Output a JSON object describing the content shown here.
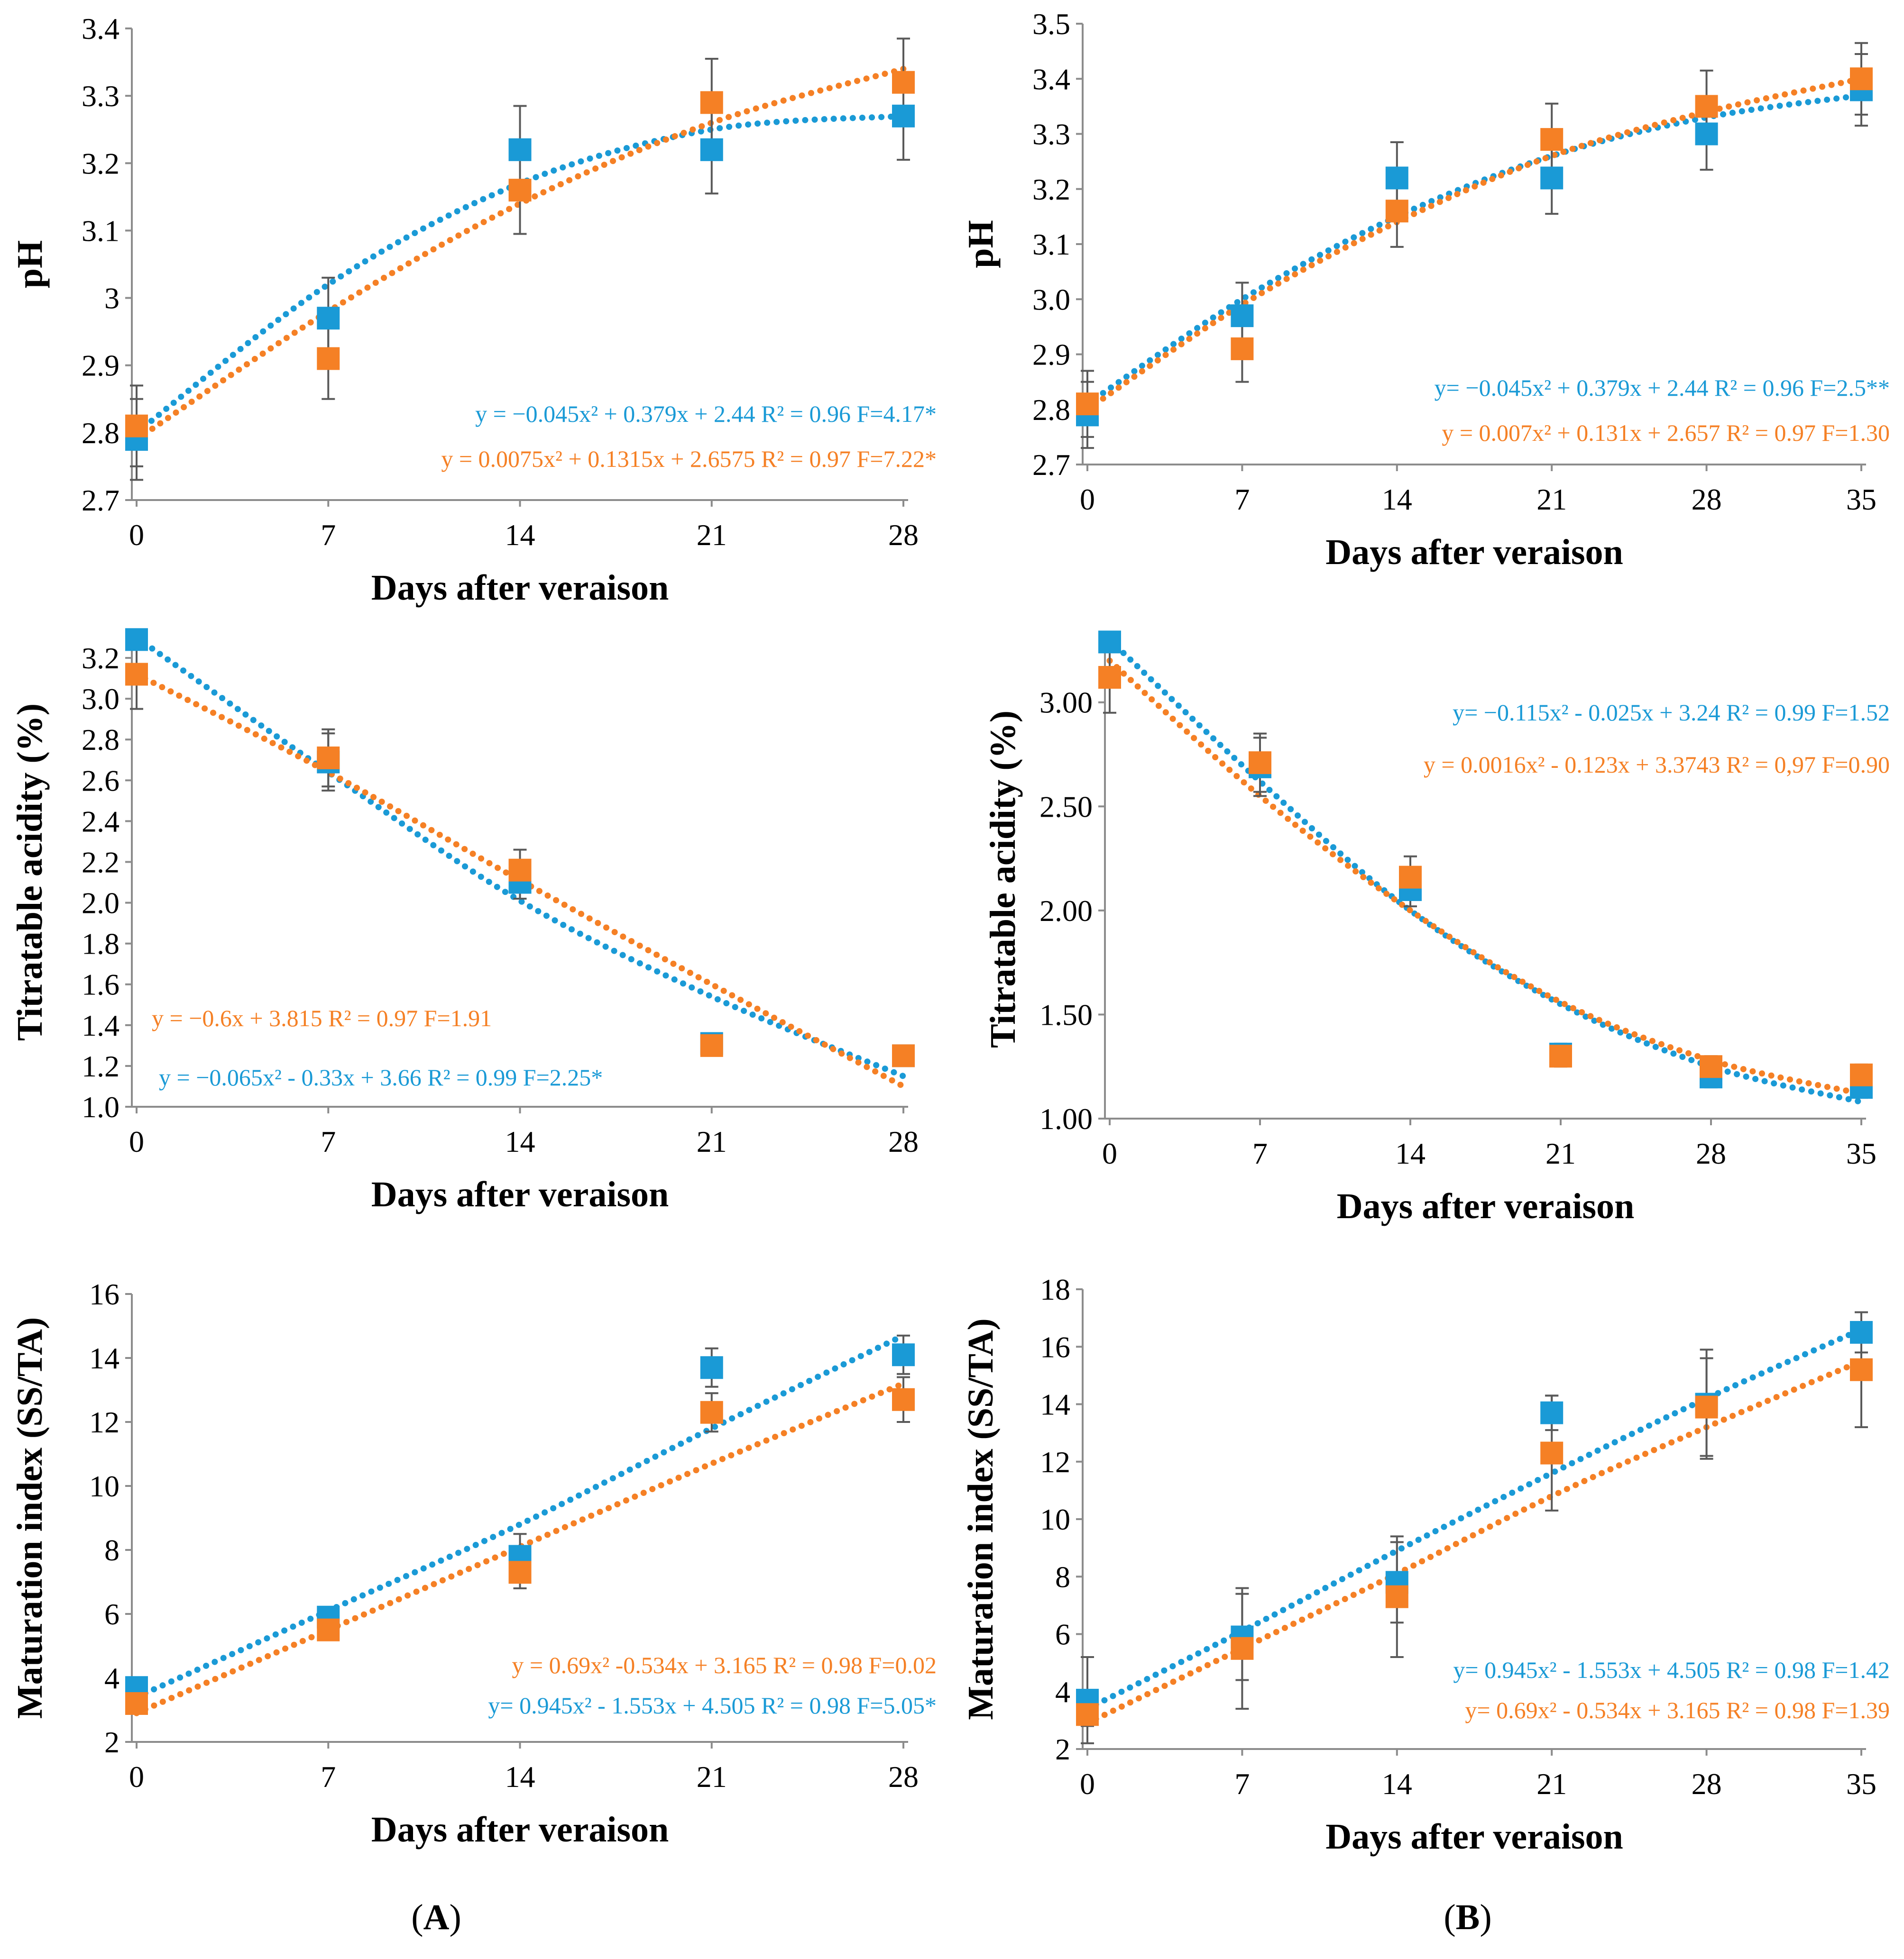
{
  "colors": {
    "blue": "#1a9ad6",
    "orange": "#f58025",
    "axis": "#8c8c8c",
    "error": "#595959"
  },
  "panel_labels": {
    "left_open": "(",
    "left_letter": "A",
    "left_close": ")",
    "right_open": "(",
    "right_letter": "B",
    "right_close": ")"
  },
  "chart_data": [
    {
      "id": "A-pH",
      "type": "scatter",
      "xlabel": "Days after veraison",
      "ylabel": "pH",
      "x": [
        0,
        7,
        14,
        21,
        28
      ],
      "xticks": [
        "0",
        "7",
        "14",
        "21",
        "28"
      ],
      "ylim": [
        2.7,
        3.4
      ],
      "yticks": [
        "2.7",
        "2.8",
        "2.9",
        "3",
        "3.1",
        "3.2",
        "3.3",
        "3.4"
      ],
      "series": [
        {
          "name": "blue",
          "color": "#1a9ad6",
          "values": [
            2.79,
            2.97,
            3.22,
            3.22,
            3.27
          ],
          "errors": [
            0.06,
            0.06,
            0.065,
            0.065,
            0.065
          ],
          "trend": [
            2.8,
            3.02,
            3.17,
            3.25,
            3.27
          ]
        },
        {
          "name": "orange",
          "color": "#f58025",
          "values": [
            2.81,
            2.91,
            3.16,
            3.29,
            3.32
          ],
          "errors": [
            0.06,
            0.06,
            0.065,
            0.065,
            0.065
          ],
          "trend": [
            2.79,
            2.98,
            3.14,
            3.26,
            3.34
          ]
        }
      ],
      "equations": [
        {
          "text": "y = −0.045x² + 0.379x + 2.44 R² = 0.96  F=4.17*",
          "color": "#1a9ad6"
        },
        {
          "text": "y = 0.0075x² + 0.1315x + 2.6575 R² = 0.97  F=7.22*",
          "color": "#f58025"
        }
      ]
    },
    {
      "id": "B-pH",
      "type": "scatter",
      "xlabel": "Days after veraison",
      "ylabel": "pH",
      "x": [
        0,
        7,
        14,
        21,
        28,
        35
      ],
      "xticks": [
        "0",
        "7",
        "14",
        "21",
        "28",
        "35"
      ],
      "ylim": [
        2.7,
        3.5
      ],
      "yticks": [
        "2.7",
        "2.8",
        "2.9",
        "3.0",
        "3.1",
        "3.2",
        "3.3",
        "3.4",
        "3.5"
      ],
      "series": [
        {
          "name": "blue",
          "color": "#1a9ad6",
          "values": [
            2.79,
            2.97,
            3.22,
            3.22,
            3.3,
            3.38
          ],
          "errors": [
            0.06,
            0.06,
            0.065,
            0.065,
            0.065,
            0.065
          ],
          "trend": [
            2.81,
            3.0,
            3.15,
            3.26,
            3.33,
            3.37
          ]
        },
        {
          "name": "orange",
          "color": "#f58025",
          "values": [
            2.81,
            2.91,
            3.16,
            3.29,
            3.35,
            3.4
          ],
          "errors": [
            0.06,
            0.06,
            0.065,
            0.065,
            0.065,
            0.065
          ],
          "trend": [
            2.8,
            2.99,
            3.14,
            3.26,
            3.34,
            3.4
          ]
        }
      ],
      "equations": [
        {
          "text": "y= −0.045x² + 0.379x + 2.44  R² = 0.96  F=2.5**",
          "color": "#1a9ad6"
        },
        {
          "text": "y = 0.007x² + 0.131x + 2.657 R² = 0.97  F=1.30",
          "color": "#f58025"
        }
      ]
    },
    {
      "id": "A-TA",
      "type": "scatter",
      "xlabel": "Days after veraison",
      "ylabel": "Titratable acidity (%)",
      "x": [
        0,
        7,
        14,
        21,
        28
      ],
      "xticks": [
        "0",
        "7",
        "14",
        "21",
        "28"
      ],
      "ylim": [
        1.0,
        3.3
      ],
      "yticks": [
        "1.0",
        "1.2",
        "1.4",
        "1.6",
        "1.8",
        "2.0",
        "2.2",
        "2.4",
        "2.6",
        "2.8",
        "3.0",
        "3.2"
      ],
      "series": [
        {
          "name": "blue",
          "color": "#1a9ad6",
          "values": [
            3.29,
            2.69,
            2.1,
            1.31,
            1.25
          ],
          "errors": [
            0.0,
            0.14,
            0.08,
            0.05,
            0.05
          ],
          "trend": [
            3.3,
            2.64,
            2.01,
            1.54,
            1.15
          ]
        },
        {
          "name": "orange",
          "color": "#f58025",
          "values": [
            3.12,
            2.71,
            2.16,
            1.3,
            1.25
          ],
          "errors": [
            0.17,
            0.14,
            0.1,
            0.05,
            0.05
          ],
          "trend": [
            3.12,
            2.64,
            2.11,
            1.6,
            1.1
          ]
        }
      ],
      "equations": [
        {
          "text": "y = −0.6x + 3.815  R² = 0.97  F=1.91",
          "color": "#f58025"
        },
        {
          "text": "y = −0.065x² - 0.33x + 3.66  R² = 0.99  F=2.25*",
          "color": "#1a9ad6"
        }
      ]
    },
    {
      "id": "B-TA",
      "type": "scatter",
      "xlabel": "Days after veraison",
      "ylabel": "Titratable acidity (%)",
      "x": [
        0,
        7,
        14,
        21,
        28,
        35
      ],
      "xticks": [
        "0",
        "7",
        "14",
        "21",
        "28",
        "35"
      ],
      "ylim": [
        1.0,
        3.3
      ],
      "yticks": [
        "1.00",
        "1.50",
        "2.00",
        "2.50",
        "3.00"
      ],
      "series": [
        {
          "name": "blue",
          "color": "#1a9ad6",
          "values": [
            3.29,
            2.69,
            2.1,
            1.31,
            1.2,
            1.15
          ],
          "errors": [
            0.0,
            0.14,
            0.08,
            0.05,
            0.05,
            0.05
          ],
          "trend": [
            3.3,
            2.62,
            2.0,
            1.55,
            1.25,
            1.08
          ]
        },
        {
          "name": "orange",
          "color": "#f58025",
          "values": [
            3.12,
            2.71,
            2.16,
            1.3,
            1.25,
            1.21
          ],
          "errors": [
            0.17,
            0.14,
            0.1,
            0.05,
            0.05,
            0.05
          ],
          "trend": [
            3.2,
            2.55,
            2.0,
            1.56,
            1.28,
            1.12
          ]
        }
      ],
      "equations": [
        {
          "text": "y= −0.115x² - 0.025x + 3.24 R² = 0.99   F=1.52",
          "color": "#1a9ad6"
        },
        {
          "text": "y = 0.0016x² - 0.123x + 3.3743 R² = 0,97 F=0.90",
          "color": "#f58025"
        }
      ]
    },
    {
      "id": "A-MI",
      "type": "scatter",
      "xlabel": "Days after veraison",
      "ylabel": "Maturation index  (SS/TA)",
      "x": [
        0,
        7,
        14,
        21,
        28
      ],
      "xticks": [
        "0",
        "7",
        "14",
        "21",
        "28"
      ],
      "ylim": [
        2,
        16
      ],
      "yticks": [
        "2",
        "4",
        "6",
        "8",
        "10",
        "12",
        "14",
        "16"
      ],
      "series": [
        {
          "name": "blue",
          "color": "#1a9ad6",
          "values": [
            3.7,
            5.9,
            7.8,
            13.7,
            14.1
          ],
          "errors": [
            0.0,
            0.3,
            0.7,
            0.6,
            0.6
          ],
          "trend": [
            3.4,
            6.1,
            8.8,
            11.8,
            14.7
          ]
        },
        {
          "name": "orange",
          "color": "#f58025",
          "values": [
            3.2,
            5.5,
            7.3,
            12.3,
            12.7
          ],
          "errors": [
            0.0,
            0.2,
            0.5,
            0.6,
            0.7
          ],
          "trend": [
            2.9,
            5.5,
            8.1,
            10.7,
            13.2
          ]
        }
      ],
      "equations": [
        {
          "text": "y = 0.69x² -0.534x + 3.165 R² = 0.98  F=0.02",
          "color": "#f58025"
        },
        {
          "text": "y= 0.945x² - 1.553x + 4.505 R² = 0.98 F=5.05*",
          "color": "#1a9ad6"
        }
      ]
    },
    {
      "id": "B-MI",
      "type": "scatter",
      "xlabel": "Days after veraison",
      "ylabel": "Maturation index  (SS/TA)",
      "x": [
        0,
        7,
        14,
        21,
        28,
        35
      ],
      "xticks": [
        "0",
        "7",
        "14",
        "21",
        "28",
        "35"
      ],
      "ylim": [
        2,
        18
      ],
      "yticks": [
        "2",
        "4",
        "6",
        "8",
        "10",
        "12",
        "14",
        "16",
        "18"
      ],
      "series": [
        {
          "name": "blue",
          "color": "#1a9ad6",
          "values": [
            3.7,
            5.9,
            7.8,
            13.7,
            14.0,
            16.5
          ],
          "errors": [
            1.5,
            1.5,
            1.4,
            0.6,
            1.9,
            0.7
          ],
          "trend": [
            3.4,
            6.1,
            8.9,
            11.6,
            14.2,
            16.6
          ]
        },
        {
          "name": "orange",
          "color": "#f58025",
          "values": [
            3.2,
            5.5,
            7.3,
            12.3,
            13.9,
            15.2
          ],
          "errors": [
            0.4,
            2.1,
            2.1,
            2.0,
            1.7,
            2.0
          ],
          "trend": [
            2.9,
            5.5,
            8.1,
            10.8,
            13.2,
            15.5
          ]
        }
      ],
      "equations": [
        {
          "text": "y= 0.945x² - 1.553x + 4.505  R² = 0.98   F=1.42",
          "color": "#1a9ad6"
        },
        {
          "text": "y= 0.69x² - 0.534x + 3.165  R² = 0.98  F=1.39",
          "color": "#f58025"
        }
      ]
    }
  ]
}
